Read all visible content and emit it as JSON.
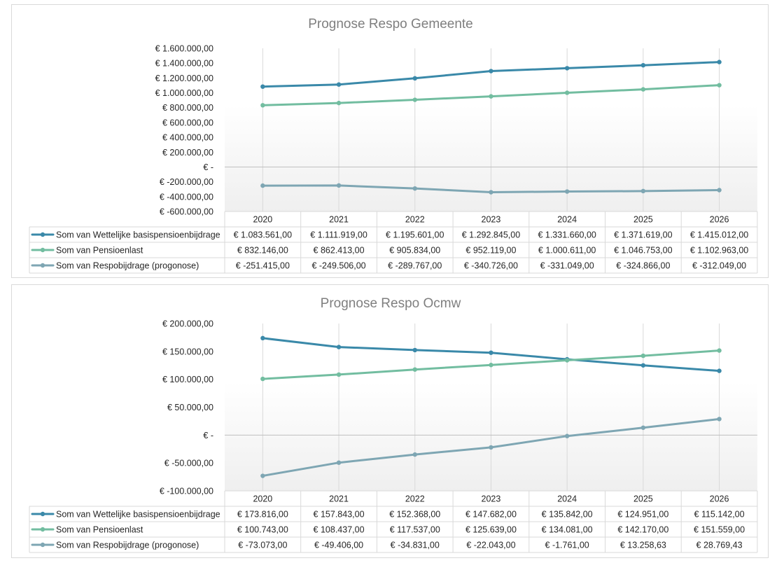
{
  "colors": {
    "series": [
      "#3a89a9",
      "#72bda0",
      "#7ea6b3"
    ],
    "grid": "#d9d9d9",
    "zero_line": "#bfbfbf",
    "plot_fill_top": "#ffffff",
    "plot_fill_bottom": "#efefef"
  },
  "chart_data": [
    {
      "type": "line",
      "title": "Prognose Respo Gemeente",
      "categories": [
        "2020",
        "2021",
        "2022",
        "2023",
        "2024",
        "2025",
        "2026"
      ],
      "ylim": [
        -600000,
        1600000
      ],
      "yticks": [
        1600000,
        1400000,
        1200000,
        1000000,
        800000,
        600000,
        400000,
        200000,
        0,
        -200000,
        -400000,
        -600000
      ],
      "ytick_labels": [
        "€ 1.600.000,00",
        "€ 1.400.000,00",
        "€ 1.200.000,00",
        "€ 1.000.000,00",
        "€ 800.000,00",
        "€ 600.000,00",
        "€ 400.000,00",
        "€ 200.000,00",
        "€ -",
        "€ -200.000,00",
        "€ -400.000,00",
        "€ -600.000,00"
      ],
      "grid": "vertical",
      "legend": "data-table",
      "series": [
        {
          "name": "Som van Wettelijke basispensioenbijdrage",
          "values": [
            1083561.0,
            1111919.0,
            1195601.0,
            1292845.0,
            1331660.0,
            1371619.0,
            1415012.0
          ],
          "labels": [
            "€ 1.083.561,00",
            "€ 1.111.919,00",
            "€ 1.195.601,00",
            "€ 1.292.845,00",
            "€ 1.331.660,00",
            "€ 1.371.619,00",
            "€ 1.415.012,00"
          ]
        },
        {
          "name": "Som van Pensioenlast",
          "values": [
            832146.0,
            862413.0,
            905834.0,
            952119.0,
            1000611.0,
            1046753.0,
            1102963.0
          ],
          "labels": [
            "€ 832.146,00",
            "€ 862.413,00",
            "€ 905.834,00",
            "€ 952.119,00",
            "€ 1.000.611,00",
            "€ 1.046.753,00",
            "€ 1.102.963,00"
          ]
        },
        {
          "name": "Som van Respobijdrage (progonose)",
          "values": [
            -251415.0,
            -249506.0,
            -289767.0,
            -340726.0,
            -331049.0,
            -324866.0,
            -312049.0
          ],
          "labels": [
            "€ -251.415,00",
            "€ -249.506,00",
            "€ -289.767,00",
            "€ -340.726,00",
            "€ -331.049,00",
            "€ -324.866,00",
            "€ -312.049,00"
          ]
        }
      ]
    },
    {
      "type": "line",
      "title": "Prognose Respo Ocmw",
      "categories": [
        "2020",
        "2021",
        "2022",
        "2023",
        "2024",
        "2025",
        "2026"
      ],
      "ylim": [
        -100000,
        200000
      ],
      "yticks": [
        200000,
        150000,
        100000,
        50000,
        0,
        -50000,
        -100000
      ],
      "ytick_labels": [
        "€ 200.000,00",
        "€ 150.000,00",
        "€ 100.000,00",
        "€ 50.000,00",
        "€ -",
        "€ -50.000,00",
        "€ -100.000,00"
      ],
      "grid": "vertical",
      "legend": "data-table",
      "series": [
        {
          "name": "Som van Wettelijke basispensioenbijdrage",
          "values": [
            173816.0,
            157843.0,
            152368.0,
            147682.0,
            135842.0,
            124951.0,
            115142.0
          ],
          "labels": [
            "€ 173.816,00",
            "€ 157.843,00",
            "€ 152.368,00",
            "€ 147.682,00",
            "€ 135.842,00",
            "€ 124.951,00",
            "€ 115.142,00"
          ]
        },
        {
          "name": "Som van Pensioenlast",
          "values": [
            100743.0,
            108437.0,
            117537.0,
            125639.0,
            134081.0,
            142170.0,
            151559.0
          ],
          "labels": [
            "€ 100.743,00",
            "€ 108.437,00",
            "€ 117.537,00",
            "€ 125.639,00",
            "€ 134.081,00",
            "€ 142.170,00",
            "€ 151.559,00"
          ]
        },
        {
          "name": "Som van Respobijdrage (progonose)",
          "values": [
            -73073.0,
            -49406.0,
            -34831.0,
            -22043.0,
            -1761.0,
            13258.63,
            28769.43
          ],
          "labels": [
            "€ -73.073,00",
            "€ -49.406,00",
            "€ -34.831,00",
            "€ -22.043,00",
            "€ -1.761,00",
            "€ 13.258,63",
            "€ 28.769,43"
          ]
        }
      ]
    }
  ]
}
